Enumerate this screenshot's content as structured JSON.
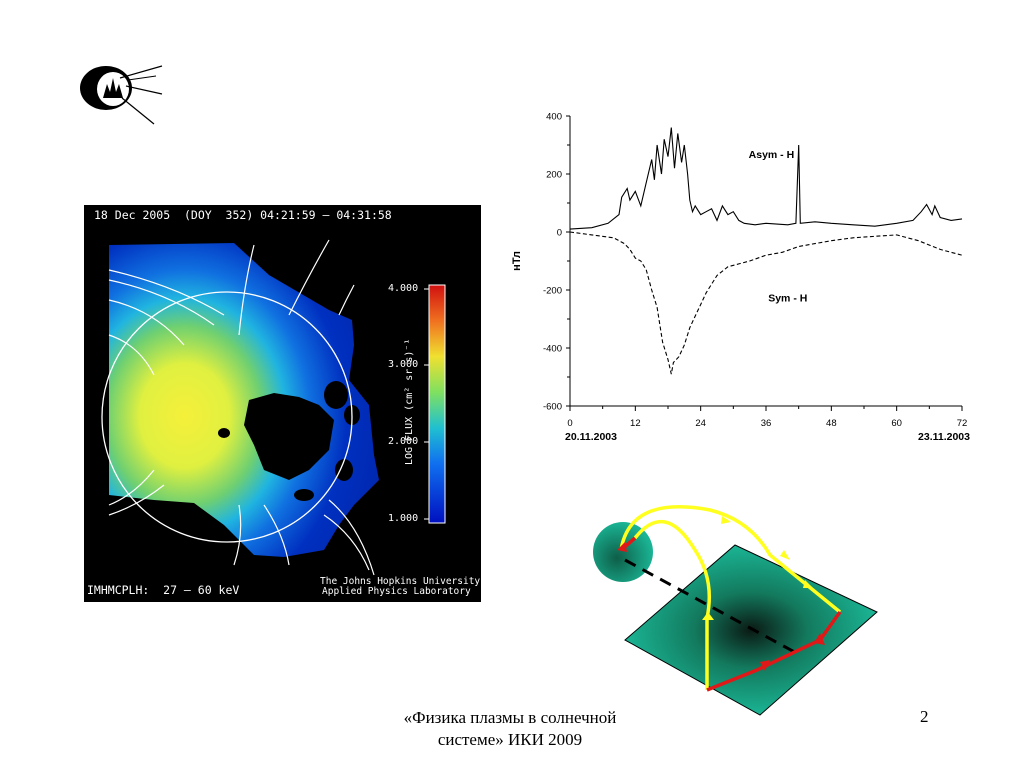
{
  "logo": {
    "icon": "iki-sputnik-logo"
  },
  "ena_image": {
    "title": "18 Dec 2005  (DOY  352) 04:21:59 – 04:31:58",
    "instrument": "IMHMCPLH:  27 – 60 keV",
    "credit_line1": "The Johns Hopkins University",
    "credit_line2": "Applied Physics Laboratory",
    "colorbar_label": "LOG FLUX (cm² sr s)⁻¹",
    "colorbar_ticks": [
      "4.000",
      "3.000",
      "2.000",
      "1.000"
    ]
  },
  "chart_data": {
    "type": "line",
    "ylabel": "нТл",
    "xlim": [
      0,
      72
    ],
    "ylim": [
      -600,
      400
    ],
    "xticks": [
      0,
      12,
      24,
      36,
      48,
      60,
      72
    ],
    "yticks": [
      400,
      200,
      0,
      -200,
      -400,
      -600
    ],
    "date_start": "20.11.2003",
    "date_end": "23.11.2003",
    "series": [
      {
        "name": "Asym - H",
        "style": "solid",
        "points": [
          [
            0,
            10
          ],
          [
            4,
            15
          ],
          [
            7,
            30
          ],
          [
            9,
            60
          ],
          [
            9.5,
            120
          ],
          [
            10.5,
            150
          ],
          [
            11,
            110
          ],
          [
            12,
            140
          ],
          [
            13,
            90
          ],
          [
            14,
            170
          ],
          [
            15,
            250
          ],
          [
            15.5,
            180
          ],
          [
            16,
            300
          ],
          [
            16.8,
            200
          ],
          [
            17.3,
            320
          ],
          [
            18,
            260
          ],
          [
            18.6,
            360
          ],
          [
            19.2,
            220
          ],
          [
            19.8,
            340
          ],
          [
            20.5,
            240
          ],
          [
            21,
            300
          ],
          [
            21.6,
            200
          ],
          [
            22,
            110
          ],
          [
            22.5,
            70
          ],
          [
            23,
            90
          ],
          [
            24,
            60
          ],
          [
            25,
            70
          ],
          [
            26,
            80
          ],
          [
            27,
            40
          ],
          [
            28,
            90
          ],
          [
            29,
            60
          ],
          [
            30,
            70
          ],
          [
            31,
            40
          ],
          [
            32,
            30
          ],
          [
            34,
            25
          ],
          [
            36,
            30
          ],
          [
            40,
            25
          ],
          [
            41.5,
            30
          ],
          [
            42,
            300
          ],
          [
            42.3,
            30
          ],
          [
            45,
            35
          ],
          [
            48,
            30
          ],
          [
            52,
            25
          ],
          [
            56,
            20
          ],
          [
            60,
            30
          ],
          [
            63,
            40
          ],
          [
            64.5,
            70
          ],
          [
            65.5,
            95
          ],
          [
            66.5,
            60
          ],
          [
            67,
            90
          ],
          [
            68,
            50
          ],
          [
            70,
            40
          ],
          [
            72,
            45
          ]
        ]
      },
      {
        "name": "Sym - H",
        "style": "dashed",
        "points": [
          [
            0,
            0
          ],
          [
            4,
            -10
          ],
          [
            8,
            -20
          ],
          [
            10,
            -40
          ],
          [
            11,
            -60
          ],
          [
            12,
            -90
          ],
          [
            13,
            -100
          ],
          [
            14,
            -130
          ],
          [
            15,
            -200
          ],
          [
            16,
            -260
          ],
          [
            17,
            -380
          ],
          [
            18,
            -440
          ],
          [
            18.6,
            -490
          ],
          [
            19,
            -450
          ],
          [
            20,
            -430
          ],
          [
            21,
            -390
          ],
          [
            22,
            -330
          ],
          [
            23,
            -290
          ],
          [
            24,
            -250
          ],
          [
            25,
            -210
          ],
          [
            27,
            -150
          ],
          [
            29,
            -120
          ],
          [
            31,
            -110
          ],
          [
            33,
            -100
          ],
          [
            36,
            -80
          ],
          [
            39,
            -70
          ],
          [
            42,
            -50
          ],
          [
            45,
            -40
          ],
          [
            48,
            -30
          ],
          [
            52,
            -20
          ],
          [
            56,
            -15
          ],
          [
            60,
            -10
          ],
          [
            64,
            -30
          ],
          [
            68,
            -60
          ],
          [
            70,
            -70
          ],
          [
            72,
            -80
          ]
        ]
      }
    ]
  },
  "diagram": {
    "description_icon": "substorm-current-wedge-icon"
  },
  "caption_line1": "«Физика плазмы в солнечной",
  "caption_line2": "системе» ИКИ 2009",
  "page_number": "2"
}
